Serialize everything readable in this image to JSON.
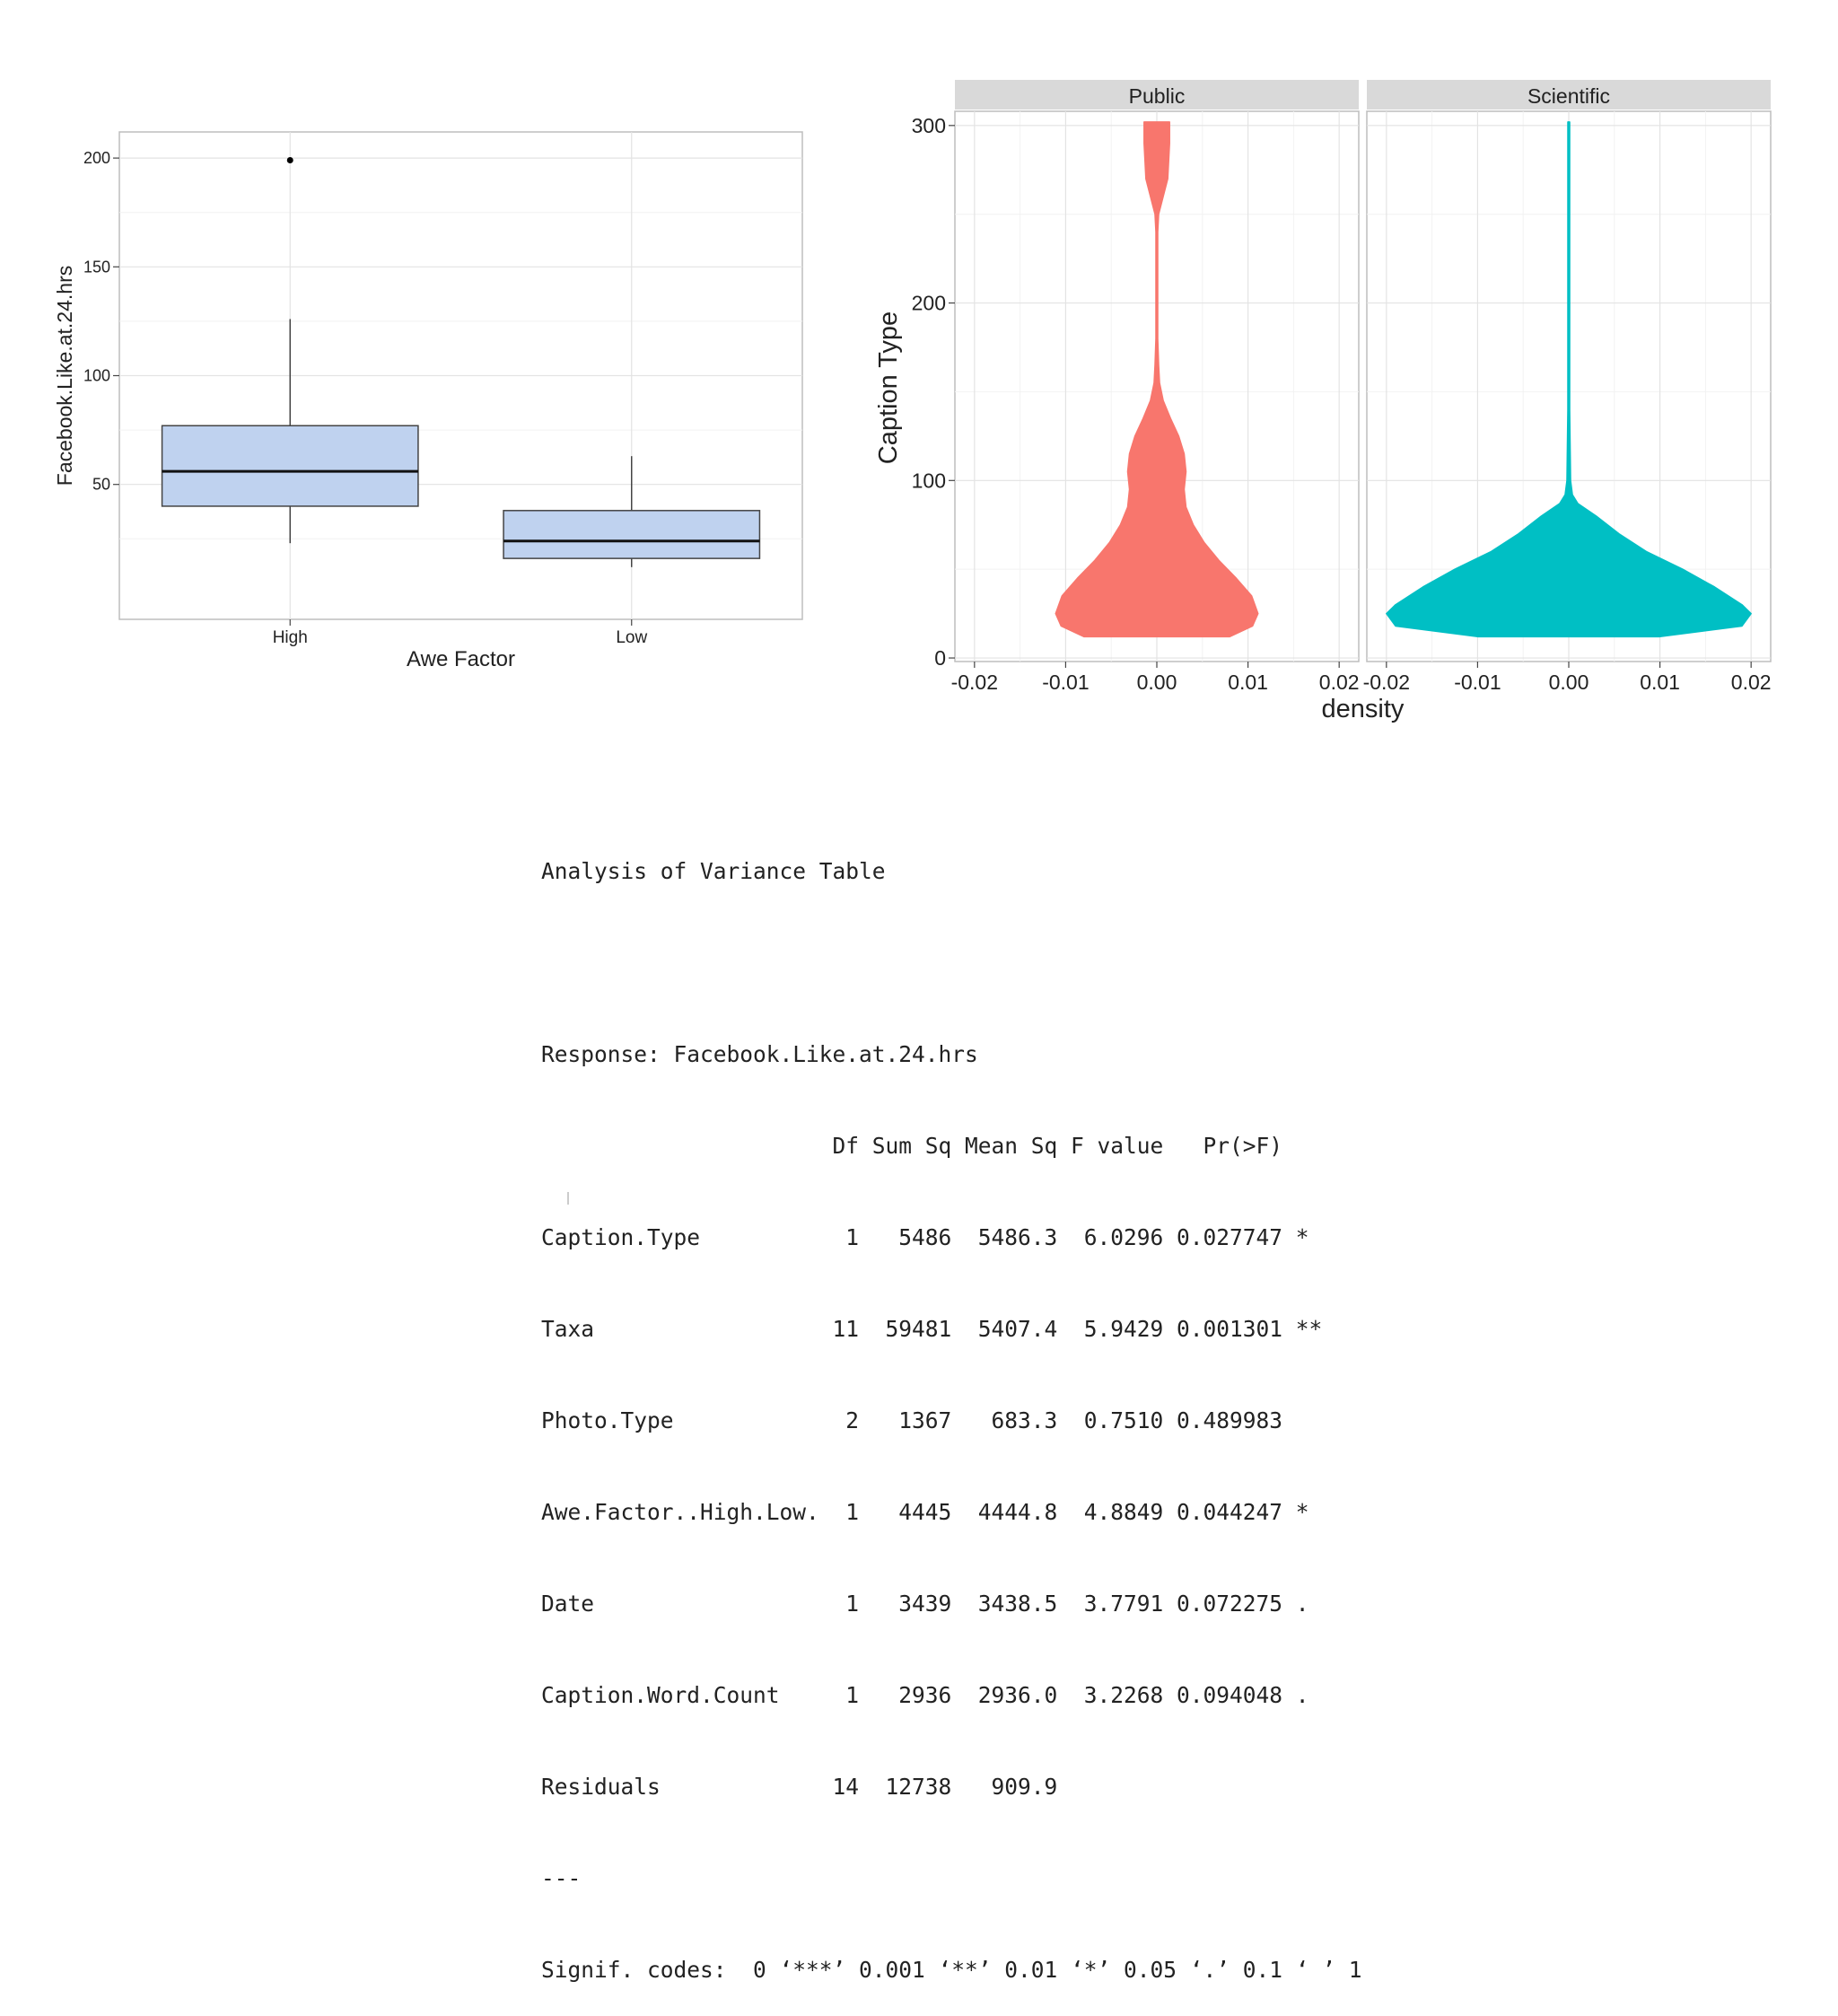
{
  "chart_data": [
    {
      "type": "box",
      "xlabel": "Awe Factor",
      "ylabel": "Facebook.Like.at.24.hrs",
      "ylim": [
        -12,
        212
      ],
      "yticks": [
        50,
        100,
        150,
        200
      ],
      "grid": true,
      "box_color": "#bfd2ef",
      "categories": [
        "High",
        "Low"
      ],
      "boxes": [
        {
          "category": "High",
          "min": 23,
          "q1": 40,
          "median": 56,
          "q3": 77,
          "max": 126,
          "outliers": [
            199
          ]
        },
        {
          "category": "Low",
          "min": 12,
          "q1": 16,
          "median": 24,
          "q3": 38,
          "max": 63,
          "outliers": []
        }
      ]
    },
    {
      "type": "violin",
      "xlabel": "density",
      "ylabel": "Caption Type",
      "ylim": [
        -2,
        308
      ],
      "xlim": [
        -0.02,
        0.02
      ],
      "yticks": [
        0,
        100,
        200,
        300
      ],
      "xticks": [
        "-0.02",
        "-0.01",
        "0.00",
        "0.01",
        "0.02"
      ],
      "yticklabels": [
        "0",
        "100",
        "200",
        "300"
      ],
      "grid": true,
      "panels": [
        {
          "name": "Public",
          "color": "#f8766d",
          "profile": [
            [
              12,
              0.008
            ],
            [
              18,
              0.0105
            ],
            [
              25,
              0.0111
            ],
            [
              35,
              0.0104
            ],
            [
              45,
              0.0087
            ],
            [
              55,
              0.0068
            ],
            [
              65,
              0.0052
            ],
            [
              75,
              0.004
            ],
            [
              85,
              0.0032
            ],
            [
              95,
              0.003
            ],
            [
              105,
              0.0032
            ],
            [
              115,
              0.003
            ],
            [
              125,
              0.0024
            ],
            [
              135,
              0.0015
            ],
            [
              145,
              0.0007
            ],
            [
              155,
              0.0003
            ],
            [
              165,
              0.0002
            ],
            [
              180,
              0.0001
            ],
            [
              200,
              0.0001
            ],
            [
              220,
              0.0001
            ],
            [
              240,
              0.0001
            ],
            [
              250,
              0.0002
            ],
            [
              260,
              0.0007
            ],
            [
              270,
              0.0012
            ],
            [
              280,
              0.0013
            ],
            [
              290,
              0.0014
            ],
            [
              302,
              0.0014
            ]
          ]
        },
        {
          "name": "Scientific",
          "color": "#00bfc4",
          "profile": [
            [
              12,
              0.01
            ],
            [
              15,
              0.0145
            ],
            [
              18,
              0.019
            ],
            [
              25,
              0.02
            ],
            [
              30,
              0.019
            ],
            [
              40,
              0.016
            ],
            [
              50,
              0.0125
            ],
            [
              60,
              0.0085
            ],
            [
              70,
              0.0055
            ],
            [
              80,
              0.003
            ],
            [
              87,
              0.001
            ],
            [
              92,
              0.0004
            ],
            [
              100,
              0.0002
            ],
            [
              140,
              0.0001
            ],
            [
              200,
              0.0001
            ],
            [
              260,
              0.0001
            ],
            [
              302,
              0.0001
            ]
          ]
        }
      ]
    }
  ],
  "anova": {
    "title": "Analysis of Variance Table",
    "response": "Response: Facebook.Like.at.24.hrs",
    "header": "                      Df Sum Sq Mean Sq F value   Pr(>F)   ",
    "rows": [
      "Caption.Type           1   5486  5486.3  6.0296 0.027747 * ",
      "Taxa                  11  59481  5407.4  5.9429 0.001301 **",
      "Photo.Type             2   1367   683.3  0.7510 0.489983   ",
      "Awe.Factor..High.Low.  1   4445  4444.8  4.8849 0.044247 * ",
      "Date                   1   3439  3438.5  3.7791 0.072275 . ",
      "Caption.Word.Count     1   2936  2936.0  3.2268 0.094048 . ",
      "Residuals             14  12738   909.9                    "
    ],
    "separator": "---",
    "signif": "Signif. codes:  0 ‘***’ 0.001 ‘**’ 0.01 ‘*’ 0.05 ‘.’ 0.1 ‘ ’ 1"
  }
}
